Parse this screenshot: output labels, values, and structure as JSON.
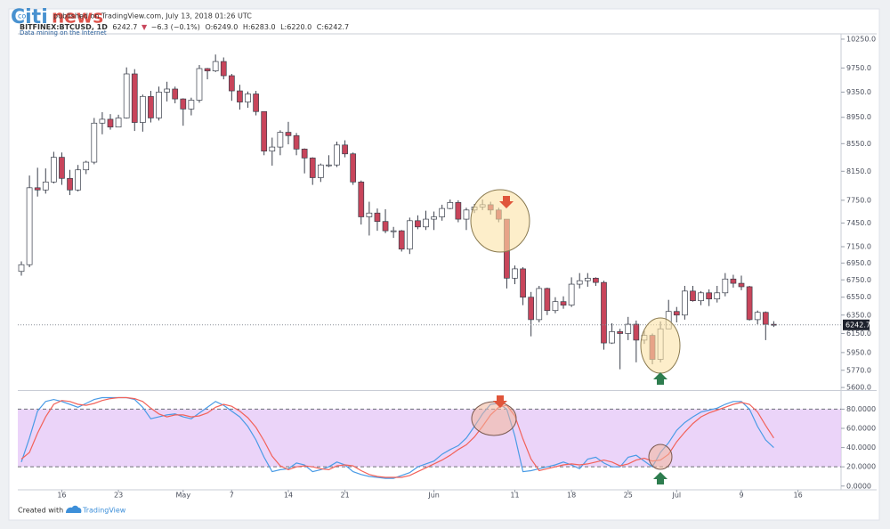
{
  "watermark": {
    "brand_a": "Citi",
    "brand_b": "news",
    "prefix": "co",
    "tagline": "Data mining on the Internet"
  },
  "header": {
    "published": "published on TradingView.com, July 13, 2018 01:26 UTC",
    "symbol": "BITFINEX:BTCUSD, 1D",
    "change": "−6.3 (−0.1%)",
    "ohlc": [
      "O:6249.0",
      "H:6283.0",
      "L:6220.0",
      "C:6242.7"
    ]
  },
  "footer": {
    "created": "Created with",
    "brand": "TradingView"
  },
  "chart_data": [
    {
      "type": "candlestick",
      "log_scale": true,
      "up_color": "#ffffff",
      "down_color": "#c8455b",
      "border_color": "#3a3f4b",
      "categories": [
        null,
        null,
        null,
        null,
        null,
        "16",
        null,
        null,
        null,
        null,
        null,
        null,
        "23",
        null,
        null,
        null,
        null,
        null,
        null,
        null,
        "May",
        null,
        null,
        null,
        null,
        null,
        "7",
        null,
        null,
        null,
        null,
        null,
        null,
        "14",
        null,
        null,
        null,
        null,
        null,
        null,
        "21",
        null,
        null,
        null,
        null,
        null,
        null,
        null,
        null,
        null,
        null,
        "Jun",
        null,
        null,
        null,
        null,
        null,
        null,
        null,
        null,
        null,
        "11",
        null,
        null,
        null,
        null,
        null,
        null,
        "18",
        null,
        null,
        null,
        null,
        null,
        null,
        "25",
        null,
        null,
        null,
        null,
        null,
        "Jul",
        null,
        null,
        null,
        null,
        null,
        null,
        null,
        "9",
        null,
        null,
        null,
        null,
        null,
        null,
        "16"
      ],
      "open": [
        6850,
        6930,
        7920,
        7890,
        8000,
        8350,
        8050,
        7890,
        8170,
        8280,
        8860,
        8920,
        8800,
        8940,
        9650,
        8870,
        9280,
        8940,
        9350,
        9400,
        9240,
        9080,
        9220,
        9740,
        9700,
        9860,
        9620,
        9370,
        9190,
        9320,
        9040,
        8440,
        8500,
        8720,
        8670,
        8470,
        8340,
        8060,
        8240,
        8240,
        8530,
        8400,
        8000,
        7530,
        7580,
        7470,
        7350,
        7350,
        7120,
        7480,
        7400,
        7500,
        7530,
        7640,
        7720,
        7500,
        7620,
        7660,
        7690,
        7620,
        7500,
        6770,
        6880,
        6550,
        6300,
        6650,
        6400,
        6500,
        6460,
        6700,
        6740,
        6770,
        6720,
        6050,
        6170,
        6150,
        6250,
        6080,
        6130,
        5880,
        6200,
        6390,
        6350,
        6620,
        6510,
        6600,
        6530,
        6600,
        6760,
        6710,
        6670,
        6300,
        6380,
        6249,
        null,
        null,
        null
      ],
      "high": [
        6970,
        8090,
        8200,
        8190,
        8430,
        8420,
        8170,
        8240,
        8300,
        8940,
        9030,
        9000,
        8990,
        9760,
        9730,
        9310,
        9370,
        9440,
        9520,
        9440,
        9250,
        9260,
        9800,
        9750,
        9980,
        9930,
        9650,
        9470,
        9360,
        9370,
        9040,
        8640,
        8750,
        8880,
        8710,
        8480,
        8350,
        8260,
        8380,
        8580,
        8600,
        8420,
        8020,
        7730,
        7640,
        7630,
        7400,
        7360,
        7520,
        7550,
        7610,
        7600,
        7690,
        7760,
        7750,
        7650,
        7700,
        7760,
        7730,
        7650,
        7500,
        6920,
        6900,
        6610,
        6680,
        6660,
        6550,
        6560,
        6780,
        6830,
        6830,
        6780,
        6740,
        6260,
        6200,
        6330,
        6290,
        6180,
        6150,
        6280,
        6520,
        6440,
        6680,
        6680,
        6620,
        6640,
        6680,
        6830,
        6810,
        6800,
        6680,
        6400,
        6390,
        6283,
        null,
        null,
        null
      ],
      "low": [
        6800,
        6900,
        7800,
        7840,
        7980,
        7960,
        7820,
        7870,
        8110,
        8250,
        8690,
        8760,
        8800,
        8930,
        8740,
        8730,
        8870,
        8900,
        9200,
        9170,
        8820,
        8980,
        9180,
        9560,
        9680,
        9560,
        9210,
        9070,
        9100,
        8980,
        8380,
        8230,
        8380,
        8540,
        8380,
        8120,
        7960,
        8000,
        8210,
        8210,
        8350,
        7960,
        7430,
        7290,
        7350,
        7320,
        7260,
        7090,
        7060,
        7370,
        7360,
        7360,
        7480,
        7630,
        7460,
        7360,
        7580,
        7620,
        7560,
        7460,
        6650,
        6700,
        6460,
        6120,
        6270,
        6350,
        6370,
        6420,
        6440,
        6650,
        6670,
        6680,
        5980,
        6040,
        5780,
        6080,
        5850,
        6040,
        5830,
        5850,
        6200,
        6270,
        6300,
        6500,
        6460,
        6450,
        6490,
        6560,
        6660,
        6630,
        6290,
        6250,
        6080,
        6220,
        null,
        null,
        null
      ],
      "close": [
        6930,
        7920,
        7890,
        8000,
        8350,
        8050,
        7890,
        8170,
        8280,
        8860,
        8920,
        8800,
        8940,
        9650,
        8870,
        9280,
        8940,
        9350,
        9400,
        9240,
        9080,
        9220,
        9740,
        9700,
        9860,
        9620,
        9370,
        9190,
        9320,
        9040,
        8440,
        8500,
        8720,
        8670,
        8470,
        8340,
        8060,
        8240,
        8240,
        8530,
        8400,
        8000,
        7530,
        7580,
        7470,
        7350,
        7350,
        7120,
        7480,
        7400,
        7500,
        7530,
        7640,
        7720,
        7500,
        7620,
        7660,
        7690,
        7620,
        7500,
        6770,
        6880,
        6550,
        6300,
        6650,
        6400,
        6500,
        6460,
        6700,
        6740,
        6770,
        6720,
        6050,
        6170,
        6150,
        6250,
        6080,
        6130,
        5880,
        6200,
        6390,
        6350,
        6620,
        6510,
        6600,
        6530,
        6600,
        6760,
        6710,
        6670,
        6300,
        6380,
        6249,
        6242.7,
        null,
        null,
        null
      ],
      "ylim": [
        5575,
        10345
      ],
      "yticks": [
        {
          "value": 5600,
          "label": "5600.0"
        },
        {
          "value": 5770,
          "label": "5770.0"
        },
        {
          "value": 5950,
          "label": "5950.0"
        },
        {
          "value": 6150,
          "label": "6150.0"
        },
        {
          "value": 6350,
          "label": "6350.0"
        },
        {
          "value": 6550,
          "label": "6550.0"
        },
        {
          "value": 6750,
          "label": "6750.0"
        },
        {
          "value": 6950,
          "label": "6950.0"
        },
        {
          "value": 7150,
          "label": "7150.0"
        },
        {
          "value": 7450,
          "label": "7450.0"
        },
        {
          "value": 7750,
          "label": "7750.0"
        },
        {
          "value": 8150,
          "label": "8150.0"
        },
        {
          "value": 8550,
          "label": "8550.0"
        },
        {
          "value": 8950,
          "label": "8950.0"
        },
        {
          "value": 9350,
          "label": "9350.0"
        },
        {
          "value": 9750,
          "label": "9750.0"
        },
        {
          "value": 10250,
          "label": "10250.0"
        }
      ]
    },
    {
      "type": "line",
      "band_color": "#e6c9f7",
      "series": [
        {
          "name": "%K",
          "color": "#4a9be6",
          "values": [
            25,
            50,
            78,
            88,
            90,
            88,
            85,
            82,
            86,
            90,
            92,
            92,
            92,
            92,
            90,
            82,
            70,
            72,
            74,
            75,
            72,
            70,
            76,
            82,
            88,
            84,
            78,
            72,
            62,
            48,
            30,
            15,
            17,
            18,
            24,
            22,
            15,
            17,
            20,
            25,
            22,
            15,
            12,
            10,
            9,
            8,
            8,
            11,
            14,
            20,
            23,
            26,
            33,
            38,
            42,
            50,
            62,
            75,
            85,
            86,
            80,
            52,
            15,
            16,
            18,
            20,
            22,
            25,
            22,
            18,
            28,
            30,
            24,
            20,
            20,
            30,
            32,
            26,
            20,
            35,
            45,
            58,
            66,
            72,
            77,
            79,
            81,
            85,
            88,
            88,
            80,
            62,
            48,
            40,
            null,
            null,
            null
          ]
        },
        {
          "name": "%D",
          "color": "#f2625a",
          "values": [
            28,
            35,
            55,
            72,
            85,
            89,
            88,
            85,
            84,
            86,
            89,
            91,
            92,
            92,
            91,
            88,
            81,
            75,
            72,
            74,
            74,
            72,
            73,
            76,
            82,
            85,
            83,
            78,
            71,
            61,
            47,
            31,
            21,
            17,
            20,
            21,
            20,
            18,
            17,
            21,
            22,
            21,
            16,
            12,
            10,
            9,
            9,
            9,
            11,
            15,
            19,
            23,
            27,
            32,
            38,
            43,
            51,
            62,
            74,
            82,
            84,
            73,
            49,
            28,
            16,
            18,
            20,
            22,
            23,
            22,
            23,
            25,
            27,
            25,
            21,
            23,
            27,
            29,
            26,
            27,
            33,
            46,
            56,
            65,
            72,
            76,
            79,
            82,
            85,
            87,
            85,
            77,
            63,
            50,
            null,
            null,
            null
          ]
        }
      ],
      "ylim": [
        -3,
        98
      ],
      "yticks": [
        {
          "value": 0,
          "label": "0.0000"
        },
        {
          "value": 20,
          "label": "20.0000"
        },
        {
          "value": 40,
          "label": "40.0000"
        },
        {
          "value": 60,
          "label": "60.0000"
        },
        {
          "value": 80,
          "label": "80.0000"
        }
      ]
    }
  ]
}
